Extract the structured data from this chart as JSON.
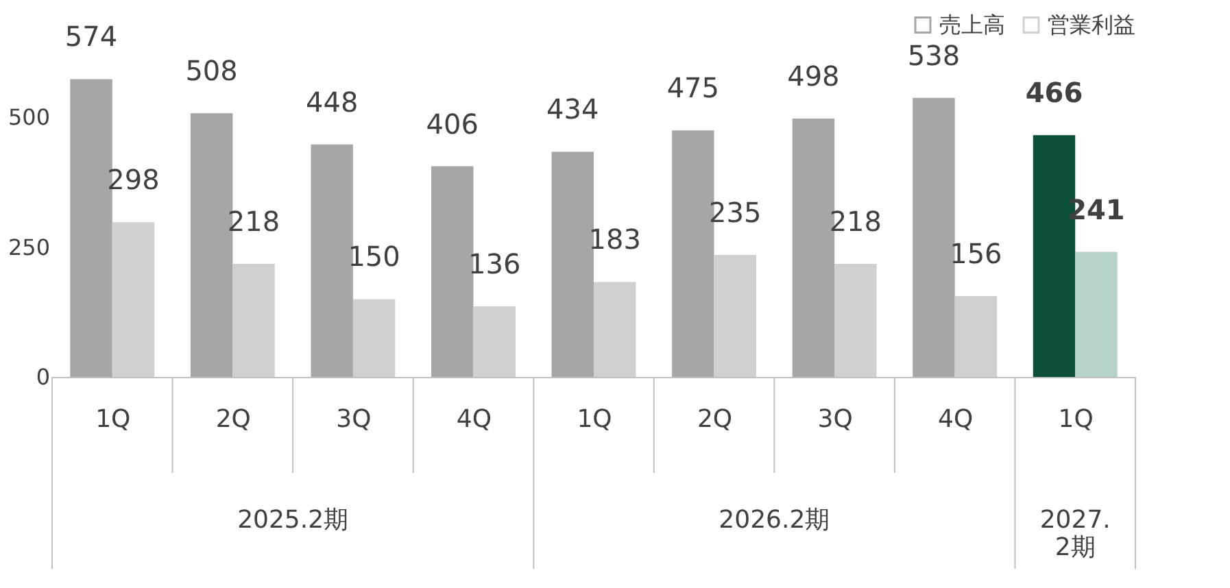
{
  "chart_data": {
    "type": "bar",
    "categories": [
      "1Q",
      "2Q",
      "3Q",
      "4Q",
      "1Q",
      "2Q",
      "3Q",
      "4Q",
      "1Q"
    ],
    "series": [
      {
        "name": "売上高",
        "color": "#a6a6a6",
        "colors": [
          "#a6a6a6",
          "#a6a6a6",
          "#a6a6a6",
          "#a6a6a6",
          "#a6a6a6",
          "#a6a6a6",
          "#a6a6a6",
          "#a6a6a6",
          "#0b4f3a"
        ],
        "values": [
          574,
          508,
          448,
          406,
          434,
          475,
          498,
          538,
          466
        ]
      },
      {
        "name": "営業利益",
        "color": "#d0d0d0",
        "colors": [
          "#d0d0d0",
          "#d0d0d0",
          "#d0d0d0",
          "#d0d0d0",
          "#d0d0d0",
          "#d0d0d0",
          "#d0d0d0",
          "#d0d0d0",
          "#b5d2c8"
        ],
        "values": [
          298,
          218,
          150,
          136,
          183,
          235,
          218,
          156,
          241
        ]
      }
    ],
    "annotations": [
      "2025.2期",
      "2026.2期",
      "2027.\n2期"
    ],
    "ylim": [
      0,
      700
    ],
    "yticks": [
      0,
      250,
      500
    ],
    "grid": false,
    "legend": "top right",
    "data_labels": true
  }
}
